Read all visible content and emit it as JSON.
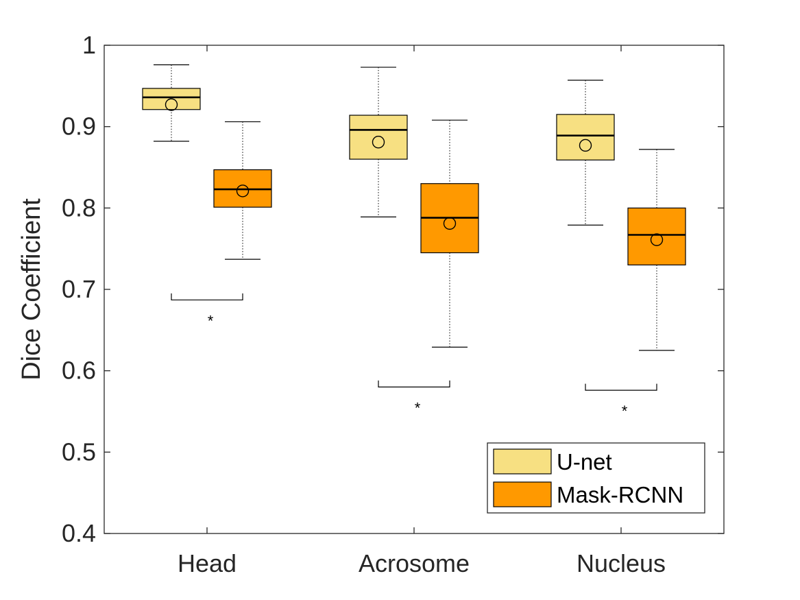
{
  "chart_data": {
    "type": "boxplot",
    "title": "",
    "xlabel": "",
    "ylabel": "Dice Coefficient",
    "ylim": [
      0.4,
      1.0
    ],
    "yticks": [
      0.4,
      0.5,
      0.6,
      0.7,
      0.8,
      0.9,
      1.0
    ],
    "ytick_labels": [
      "0.4",
      "0.5",
      "0.6",
      "0.7",
      "0.8",
      "0.9",
      "1"
    ],
    "categories": [
      "Head",
      "Acrosome",
      "Nucleus"
    ],
    "grid": false,
    "legend_position": "bottom-right",
    "series": [
      {
        "name": "U-net",
        "color": "#F7E082",
        "boxes": [
          {
            "whisker_low": 0.882,
            "q1": 0.921,
            "median": 0.936,
            "q3": 0.947,
            "whisker_high": 0.976,
            "mean": 0.927
          },
          {
            "whisker_low": 0.789,
            "q1": 0.86,
            "median": 0.896,
            "q3": 0.914,
            "whisker_high": 0.973,
            "mean": 0.881
          },
          {
            "whisker_low": 0.779,
            "q1": 0.859,
            "median": 0.889,
            "q3": 0.915,
            "whisker_high": 0.957,
            "mean": 0.877
          }
        ]
      },
      {
        "name": "Mask-RCNN",
        "color": "#FF9900",
        "boxes": [
          {
            "whisker_low": 0.737,
            "q1": 0.801,
            "median": 0.823,
            "q3": 0.847,
            "whisker_high": 0.906,
            "mean": 0.821
          },
          {
            "whisker_low": 0.629,
            "q1": 0.745,
            "median": 0.788,
            "q3": 0.83,
            "whisker_high": 0.908,
            "mean": 0.781
          },
          {
            "whisker_low": 0.625,
            "q1": 0.73,
            "median": 0.767,
            "q3": 0.8,
            "whisker_high": 0.872,
            "mean": 0.761
          }
        ]
      }
    ],
    "significance": [
      {
        "category": "Head",
        "bracket_y": 0.687,
        "bracket_top": 0.695,
        "label": "*"
      },
      {
        "category": "Acrosome",
        "bracket_y": 0.58,
        "bracket_top": 0.588,
        "label": "*"
      },
      {
        "category": "Nucleus",
        "bracket_y": 0.576,
        "bracket_top": 0.584,
        "label": "*"
      }
    ]
  }
}
